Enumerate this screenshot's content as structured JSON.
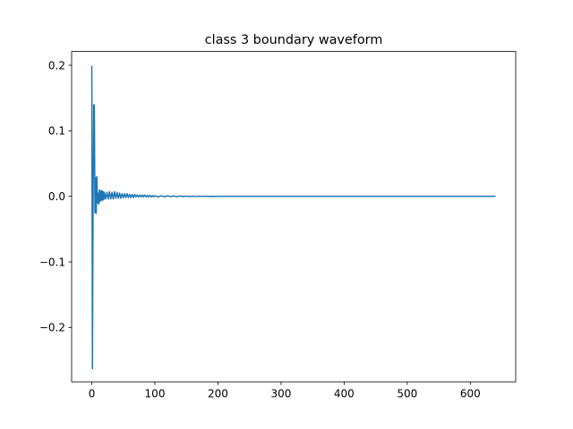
{
  "chart_data": {
    "type": "line",
    "title": "class 3 boundary waveform",
    "xlabel": "",
    "ylabel": "",
    "xlim": [
      -32,
      672
    ],
    "ylim": [
      -0.283,
      0.221
    ],
    "xticks": [
      0,
      100,
      200,
      300,
      400,
      500,
      600
    ],
    "xtick_labels": [
      "0",
      "100",
      "200",
      "300",
      "400",
      "500",
      "600"
    ],
    "yticks": [
      -0.2,
      -0.1,
      0.0,
      0.1,
      0.2
    ],
    "ytick_labels": [
      "−0.2",
      "−0.1",
      "0.0",
      "0.1",
      "0.2"
    ],
    "grid": false,
    "legend": "none",
    "series": [
      {
        "color": "#1f77b4",
        "x": [
          0,
          1,
          2,
          3,
          4,
          5,
          6,
          7,
          8,
          9,
          10,
          11,
          12,
          13,
          14,
          15,
          16,
          17,
          18,
          19,
          20,
          22,
          24,
          26,
          28,
          30,
          32,
          34,
          36,
          38,
          40,
          42,
          44,
          46,
          48,
          50,
          52,
          54,
          56,
          58,
          60,
          62,
          64,
          66,
          68,
          70,
          72,
          74,
          76,
          78,
          80,
          82,
          84,
          86,
          88,
          90,
          92,
          94,
          96,
          98,
          100,
          105,
          110,
          115,
          120,
          125,
          130,
          135,
          140,
          145,
          150,
          155,
          160,
          165,
          170,
          175,
          180,
          185,
          190,
          195,
          200,
          210,
          220,
          230,
          240,
          250,
          260,
          280,
          300,
          320,
          340,
          360,
          380,
          400,
          450,
          500,
          550,
          600,
          639
        ],
        "y": [
          0.198,
          -0.263,
          -0.02,
          0.14,
          0.138,
          -0.025,
          0.028,
          -0.026,
          0.03,
          -0.01,
          0.005,
          -0.012,
          0.01,
          -0.008,
          0.008,
          -0.006,
          0.009,
          -0.006,
          0.007,
          -0.005,
          0.006,
          -0.004,
          0.006,
          -0.004,
          0.007,
          -0.004,
          0.006,
          -0.004,
          0.007,
          -0.003,
          0.006,
          -0.003,
          0.005,
          -0.003,
          0.004,
          -0.002,
          0.004,
          -0.002,
          0.004,
          -0.002,
          0.003,
          -0.002,
          0.003,
          -0.002,
          0.003,
          -0.001,
          0.002,
          -0.001,
          0.002,
          -0.001,
          0.002,
          -0.001,
          0.002,
          -0.001,
          0.0015,
          -0.001,
          0.0015,
          -0.0008,
          0.0012,
          -0.0008,
          0.001,
          -0.0008,
          0.0008,
          -0.0006,
          0.0007,
          -0.0005,
          0.0006,
          -0.0004,
          0.0005,
          -0.0003,
          0.0004,
          -0.0003,
          0.0003,
          -0.0002,
          0.0002,
          -0.0002,
          0.0002,
          -0.0001,
          0.0001,
          -0.0001,
          0.0001,
          0.0,
          0.0,
          0.0,
          0.0,
          0.0,
          0.0,
          0.0,
          0.0,
          0.0,
          0.0,
          0.0,
          0.0,
          0.0,
          0.0,
          0.0,
          0.0,
          0.0,
          0.0
        ]
      }
    ]
  }
}
